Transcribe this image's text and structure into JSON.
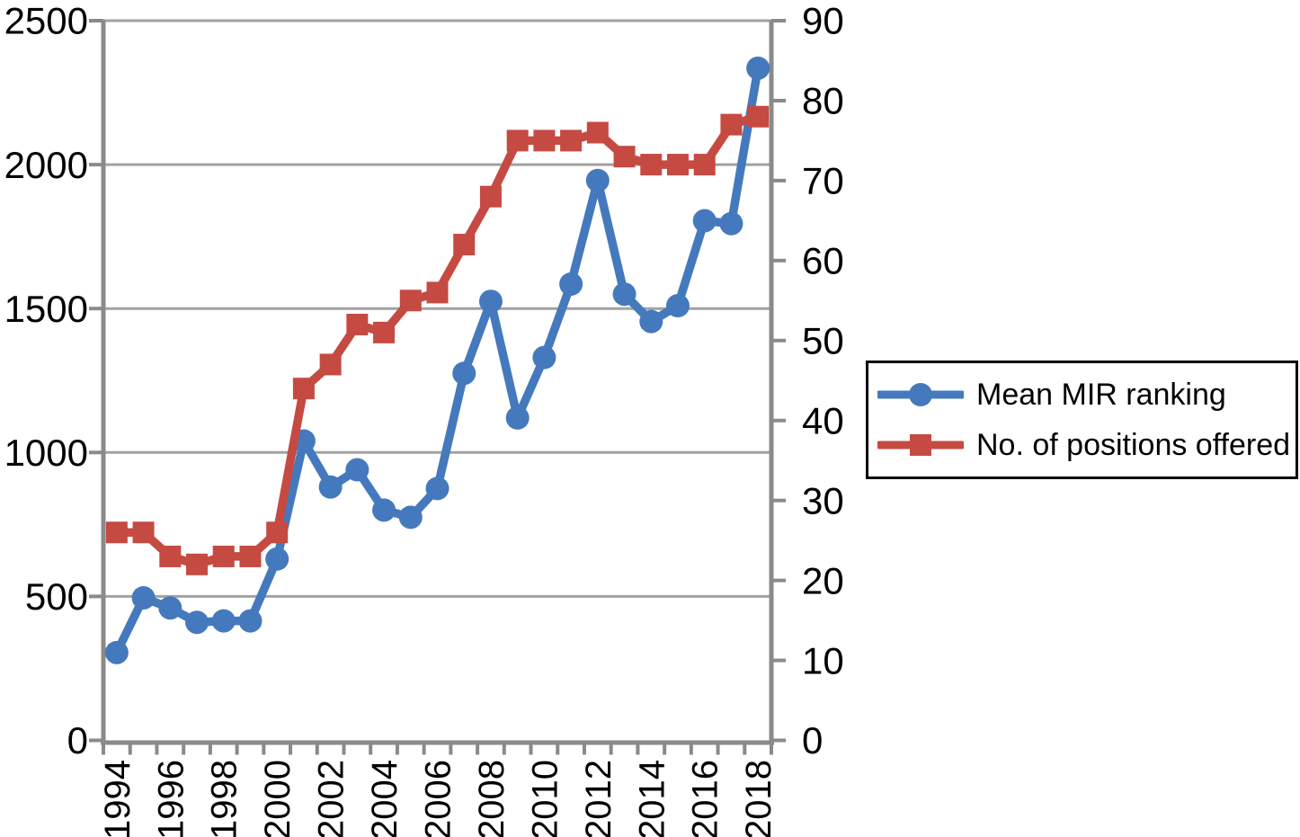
{
  "chart_data": {
    "type": "line",
    "title": "",
    "x": [
      "1994",
      "1995",
      "1996",
      "1997",
      "1998",
      "1999",
      "2000",
      "2001",
      "2002",
      "2003",
      "2004",
      "2005",
      "2006",
      "2007",
      "2008",
      "2009",
      "2010",
      "2011",
      "2012",
      "2013",
      "2014",
      "2015",
      "2016",
      "2017",
      "2018"
    ],
    "x_label_every": 2,
    "x_tick_labels": [
      "1994",
      "1996",
      "1998",
      "2000",
      "2002",
      "2004",
      "2006",
      "2008",
      "2010",
      "2012",
      "2014",
      "2016",
      "2018"
    ],
    "series": [
      {
        "name": "Mean MIR ranking",
        "axis": "left",
        "marker": "circle",
        "color": "#4579BD",
        "values": [
          305,
          495,
          460,
          410,
          415,
          415,
          630,
          1040,
          880,
          940,
          800,
          775,
          875,
          1275,
          1525,
          1120,
          1330,
          1585,
          1945,
          1550,
          1455,
          1510,
          1805,
          1795,
          2335
        ]
      },
      {
        "name": "No. of positions offered",
        "axis": "right",
        "marker": "square",
        "color": "#C54A42",
        "values": [
          26,
          26,
          23,
          22,
          23,
          23,
          26,
          44,
          47,
          52,
          51,
          55,
          56,
          62,
          68,
          75,
          75,
          75,
          76,
          73,
          72,
          72,
          72,
          77,
          78
        ]
      }
    ],
    "left_axis": {
      "min": 0,
      "max": 2500,
      "step": 500,
      "tick_labels": [
        "0",
        "500",
        "1000",
        "1500",
        "2000",
        "2500"
      ]
    },
    "right_axis": {
      "min": 0,
      "max": 90,
      "step": 10,
      "tick_labels": [
        "0",
        "10",
        "20",
        "30",
        "40",
        "50",
        "60",
        "70",
        "80",
        "90"
      ]
    },
    "grid": true,
    "legend_position": "right",
    "colors": {
      "grid": "#A2A2A2",
      "axis": "#8A8A8A",
      "text": "#000000",
      "background": "#FFFFFF"
    }
  }
}
